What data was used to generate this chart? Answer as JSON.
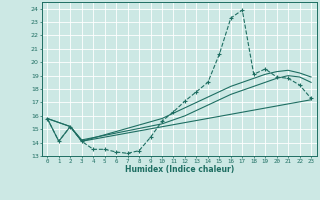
{
  "xlabel": "Humidex (Indice chaleur)",
  "xlim": [
    -0.5,
    23.5
  ],
  "ylim": [
    13,
    24.5
  ],
  "yticks": [
    13,
    14,
    15,
    16,
    17,
    18,
    19,
    20,
    21,
    22,
    23,
    24
  ],
  "xticks": [
    0,
    1,
    2,
    3,
    4,
    5,
    6,
    7,
    8,
    9,
    10,
    11,
    12,
    13,
    14,
    15,
    16,
    17,
    18,
    19,
    20,
    21,
    22,
    23
  ],
  "bg_color": "#cce8e4",
  "grid_color": "#b0d4d0",
  "line_color": "#1e6e62",
  "line1_x": [
    0,
    1,
    2,
    3,
    4,
    5,
    6,
    7,
    8,
    9,
    10,
    11,
    12,
    13,
    14,
    15,
    16,
    17,
    18,
    19,
    20,
    21,
    22,
    23
  ],
  "line1_y": [
    15.8,
    14.1,
    15.2,
    14.1,
    13.5,
    13.5,
    13.3,
    13.2,
    13.4,
    14.4,
    15.6,
    16.3,
    17.1,
    17.8,
    18.5,
    20.6,
    23.3,
    23.9,
    19.1,
    19.5,
    18.9,
    18.8,
    18.3,
    17.3
  ],
  "line2_x": [
    0,
    2,
    3,
    10,
    11,
    12,
    13,
    14,
    15,
    16,
    17,
    18,
    19,
    20,
    21,
    22,
    23
  ],
  "line2_y": [
    15.8,
    15.2,
    14.1,
    15.8,
    16.2,
    16.6,
    17.0,
    17.4,
    17.8,
    18.2,
    18.5,
    18.8,
    19.1,
    19.3,
    19.4,
    19.2,
    18.9
  ],
  "line3_x": [
    0,
    2,
    3,
    10,
    11,
    12,
    13,
    14,
    15,
    16,
    17,
    18,
    19,
    20,
    21,
    22,
    23
  ],
  "line3_y": [
    15.8,
    15.2,
    14.2,
    15.4,
    15.7,
    16.0,
    16.4,
    16.8,
    17.2,
    17.6,
    17.9,
    18.2,
    18.5,
    18.8,
    19.0,
    18.9,
    18.5
  ],
  "line4_x": [
    0,
    1,
    2,
    3,
    23
  ],
  "line4_y": [
    15.8,
    14.1,
    15.2,
    14.1,
    17.2
  ]
}
